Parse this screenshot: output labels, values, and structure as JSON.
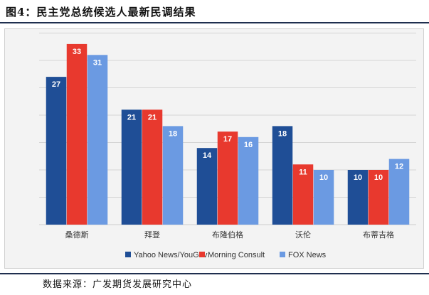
{
  "header": {
    "title": "图4：民主党总统候选人最新民调结果"
  },
  "footer": {
    "source": "数据来源：广发期货发展研究中心"
  },
  "colors": {
    "yahoo": "#1f4e96",
    "morning": "#e8392e",
    "fox": "#6b9ae2",
    "frame_bg": "#f3f3f3",
    "grid": "#d4d4d4"
  },
  "chart_data": {
    "type": "bar",
    "title": "",
    "xlabel": "",
    "ylabel": "",
    "ylim": [
      0,
      40
    ],
    "gridlines": [
      0,
      5,
      10,
      15,
      20,
      25,
      30,
      35
    ],
    "categories": [
      "桑德斯",
      "拜登",
      "布隆伯格",
      "沃伦",
      "布蒂吉格"
    ],
    "series": [
      {
        "name": "Yahoo News/YouGov",
        "color": "#1f4e96",
        "values": [
          27,
          21,
          14,
          18,
          10
        ]
      },
      {
        "name": "Morning Consult",
        "color": "#e8392e",
        "values": [
          33,
          21,
          17,
          11,
          10
        ]
      },
      {
        "name": "FOX News",
        "color": "#6b9ae2",
        "values": [
          31,
          18,
          16,
          10,
          12
        ]
      }
    ],
    "legend_position": "bottom"
  }
}
